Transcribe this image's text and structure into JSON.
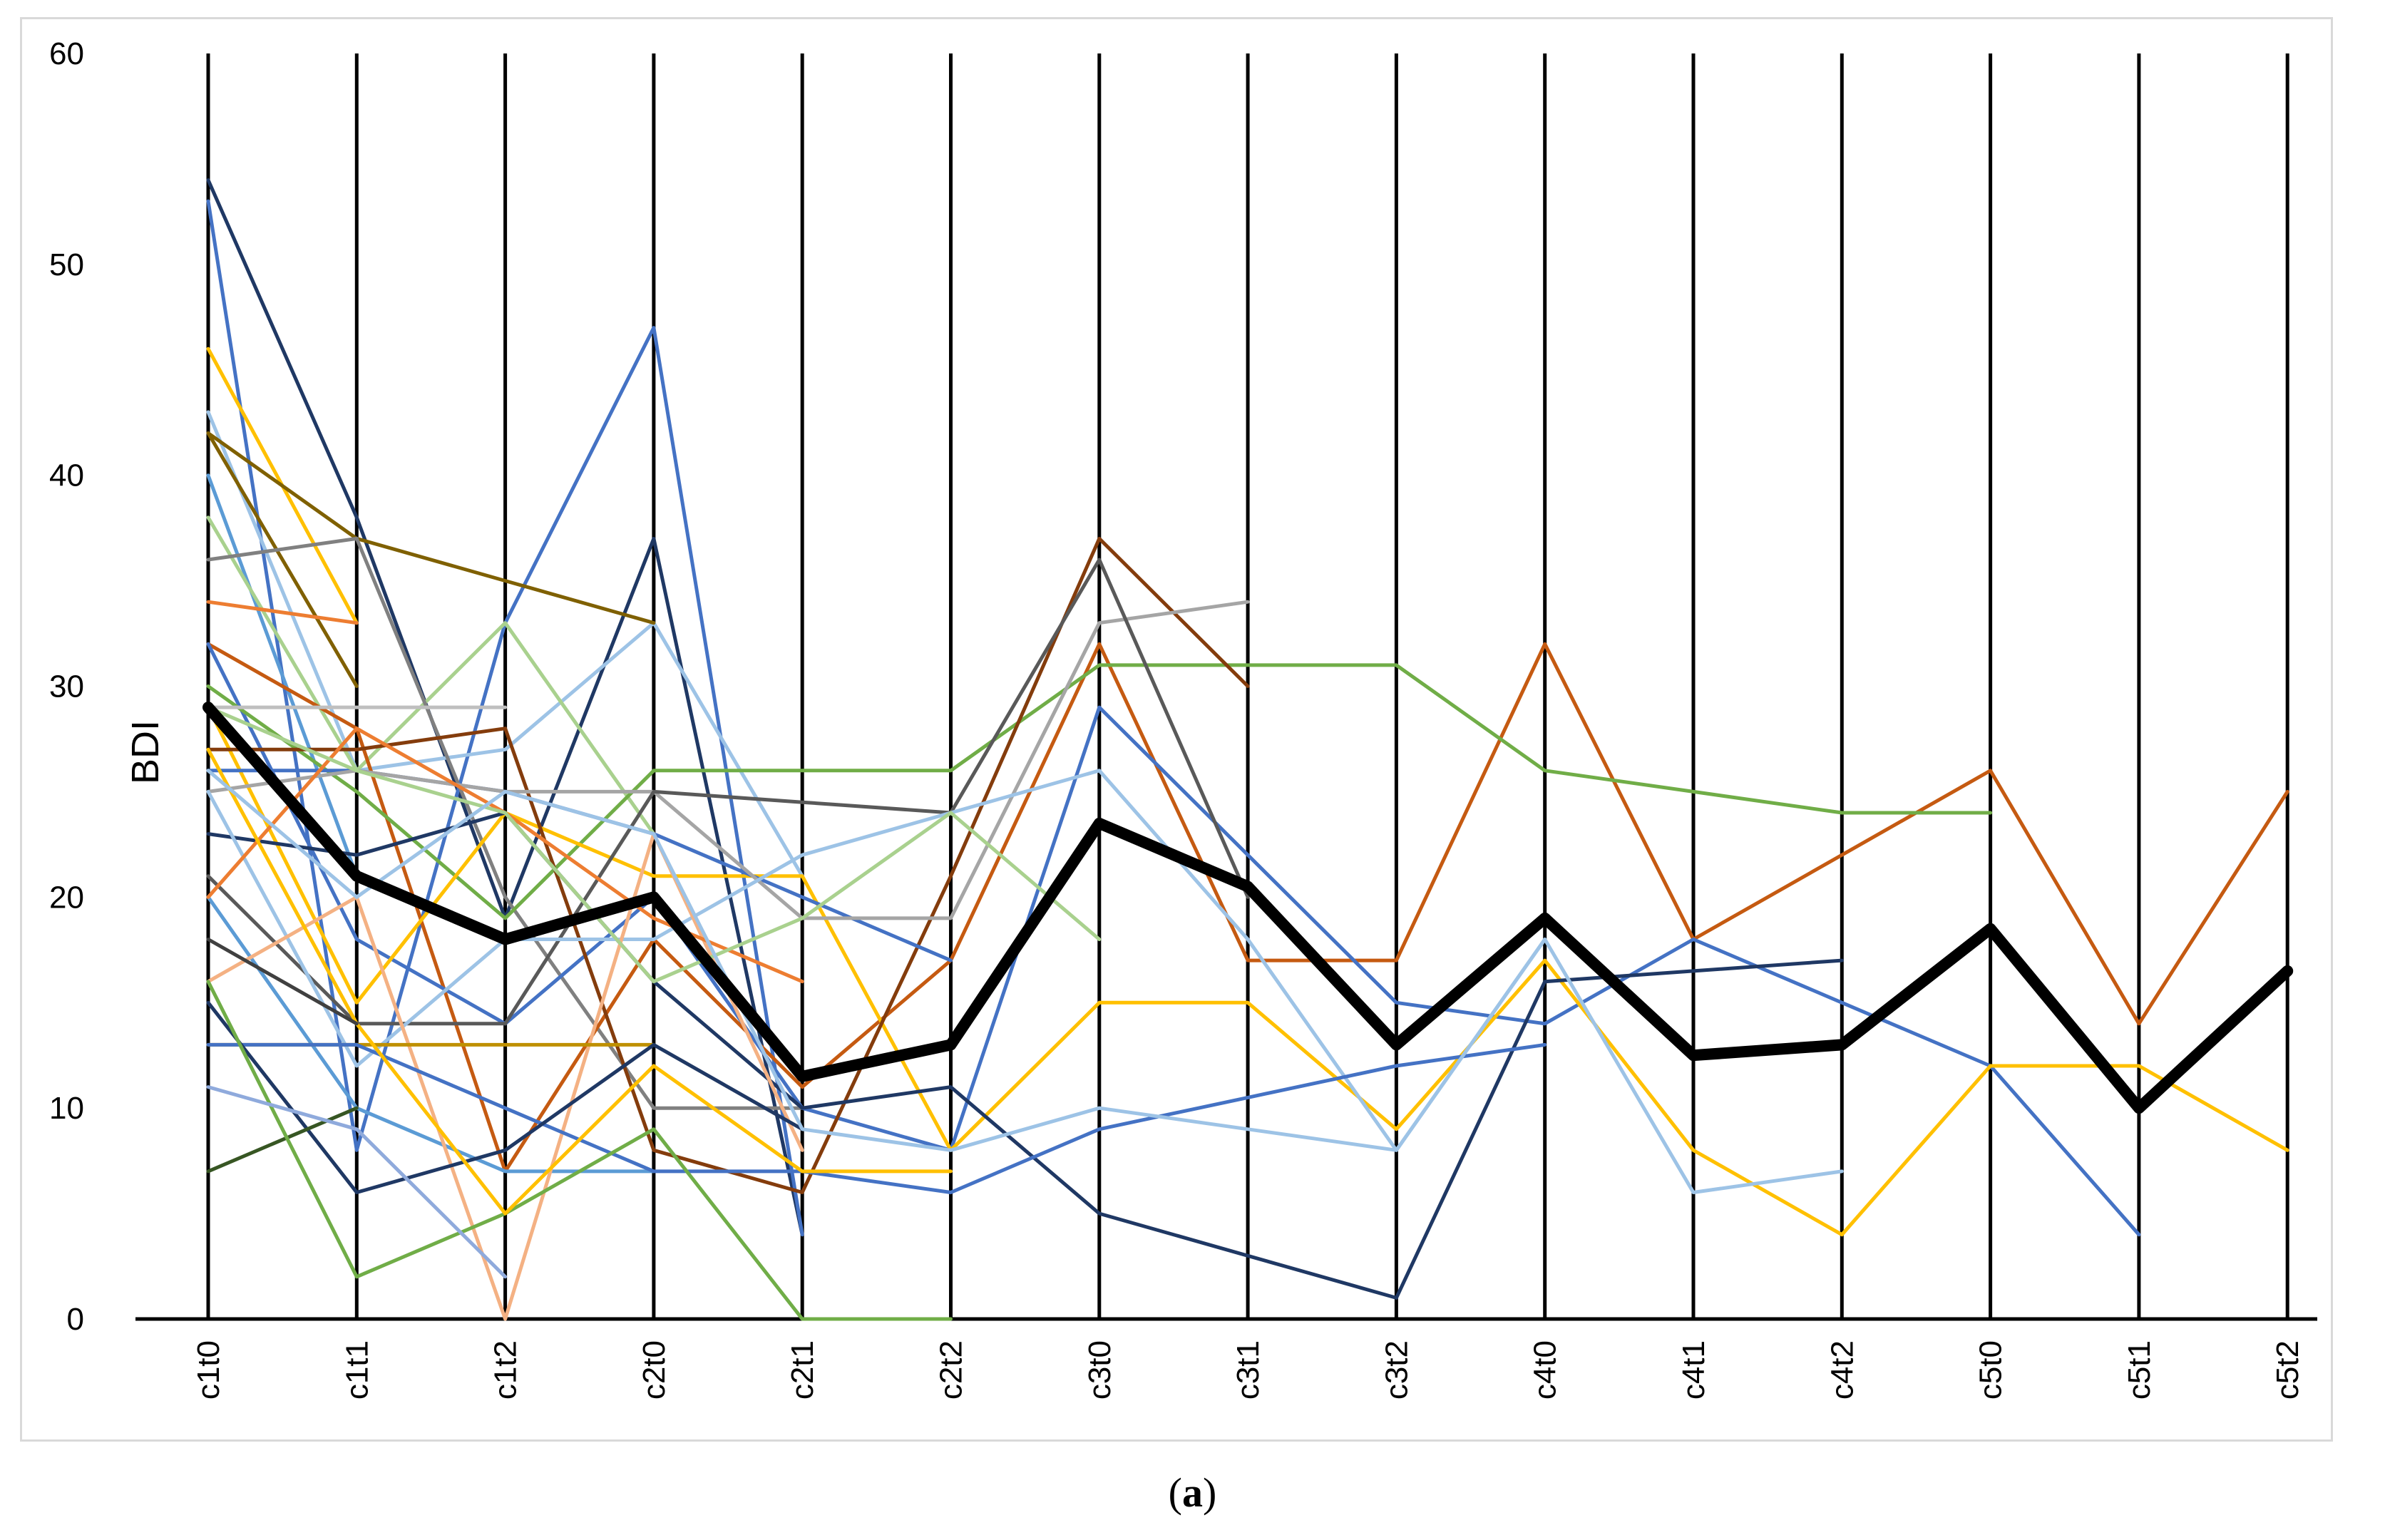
{
  "caption": {
    "open": "(",
    "letter": "a",
    "close": ")"
  },
  "chart_data": {
    "type": "line",
    "title": "",
    "xlabel": "",
    "ylabel": "BDI",
    "ylim": [
      0,
      60
    ],
    "yticks": [
      0,
      10,
      20,
      30,
      40,
      50,
      60
    ],
    "grid": "vertical lines at each category",
    "legend": "none",
    "categories": [
      "c1t0",
      "c1t1",
      "c1t2",
      "c2t0",
      "c2t1",
      "c2t2",
      "c3t0",
      "c3t1",
      "c3t2",
      "c4t0",
      "c4t1",
      "c4t2",
      "c5t0",
      "c5t1",
      "c5t2"
    ],
    "mean_series": {
      "name": "mean",
      "color": "#000000",
      "values": [
        29,
        21,
        18,
        20,
        11.5,
        13,
        23.5,
        20.5,
        13,
        19,
        12.5,
        13,
        18.5,
        10,
        16.5
      ]
    },
    "series": [
      {
        "color": "#1f3864",
        "values": [
          54,
          38,
          19,
          37,
          4,
          null,
          null,
          null,
          null,
          null,
          null,
          null,
          null,
          null,
          null
        ]
      },
      {
        "color": "#4472c4",
        "values": [
          53,
          8,
          33,
          47,
          4,
          null,
          null,
          null,
          null,
          null,
          null,
          null,
          null,
          null,
          null
        ]
      },
      {
        "color": "#ffc000",
        "values": [
          46,
          33,
          null,
          null,
          null,
          null,
          null,
          null,
          null,
          null,
          null,
          null,
          null,
          null,
          null
        ]
      },
      {
        "color": "#9dc3e6",
        "values": [
          43,
          26,
          27,
          33,
          21,
          null,
          null,
          null,
          null,
          null,
          null,
          null,
          null,
          null,
          null
        ]
      },
      {
        "color": "#7f6000",
        "values": [
          42,
          37,
          35,
          33,
          null,
          null,
          null,
          null,
          null,
          null,
          null,
          null,
          null,
          null,
          null
        ]
      },
      {
        "color": "#806000",
        "values": [
          42,
          30,
          null,
          null,
          null,
          null,
          null,
          null,
          null,
          null,
          null,
          null,
          null,
          null,
          null
        ]
      },
      {
        "color": "#5b9bd5",
        "values": [
          40,
          21,
          null,
          null,
          null,
          null,
          null,
          null,
          null,
          null,
          null,
          null,
          null,
          null,
          null
        ]
      },
      {
        "color": "#a9d18e",
        "values": [
          38,
          26,
          33,
          23,
          null,
          null,
          null,
          null,
          null,
          null,
          null,
          null,
          null,
          null,
          null
        ]
      },
      {
        "color": "#808080",
        "values": [
          36,
          37,
          20,
          10,
          10,
          null,
          null,
          null,
          null,
          null,
          null,
          null,
          null,
          null,
          null
        ]
      },
      {
        "color": "#ed7d31",
        "values": [
          34,
          33,
          null,
          null,
          null,
          null,
          null,
          null,
          null,
          null,
          null,
          null,
          null,
          null,
          null
        ]
      },
      {
        "color": "#c55a11",
        "values": [
          32,
          28,
          7,
          18,
          11,
          17,
          32,
          17,
          17,
          32,
          18,
          22,
          26,
          14,
          25
        ]
      },
      {
        "color": "#4472c4",
        "values": [
          32,
          18,
          14,
          20,
          10,
          8,
          29,
          22,
          15,
          14,
          18,
          15,
          12,
          4,
          null
        ]
      },
      {
        "color": "#70ad47",
        "values": [
          30,
          25,
          19,
          26,
          26,
          26,
          31,
          31,
          31,
          26,
          25,
          24,
          24,
          null,
          null
        ]
      },
      {
        "color": "#bfbfbf",
        "values": [
          29,
          29,
          29,
          null,
          null,
          null,
          null,
          null,
          null,
          null,
          null,
          null,
          null,
          null,
          null
        ]
      },
      {
        "color": "#ffc000",
        "values": [
          29,
          15,
          24,
          21,
          21,
          8,
          15,
          15,
          9,
          17,
          8,
          4,
          12,
          12,
          8
        ]
      },
      {
        "color": "#843c0c",
        "values": [
          27,
          27,
          28,
          8,
          6,
          21,
          37,
          30,
          null,
          null,
          null,
          null,
          null,
          null,
          null
        ]
      },
      {
        "color": "#4472c4",
        "values": [
          26,
          26,
          25,
          23,
          20,
          17,
          null,
          null,
          null,
          null,
          null,
          null,
          null,
          null,
          null
        ]
      },
      {
        "color": "#a5a5a5",
        "values": [
          25,
          26,
          25,
          25,
          19,
          19,
          33,
          34,
          null,
          null,
          null,
          null,
          null,
          null,
          null
        ]
      },
      {
        "color": "#595959",
        "values": [
          21,
          14,
          14,
          25,
          24.5,
          24,
          36,
          20,
          null,
          null,
          null,
          null,
          null,
          null,
          null
        ]
      },
      {
        "color": "#1f3864",
        "values": [
          23,
          22,
          24,
          16,
          10,
          11,
          5,
          3,
          1,
          16,
          16.5,
          17,
          null,
          null,
          null
        ]
      },
      {
        "color": "#9dc3e6",
        "values": [
          25,
          12,
          18,
          18,
          22,
          24,
          26,
          18,
          8,
          18,
          6,
          7,
          null,
          null,
          null
        ]
      },
      {
        "color": "#5b9bd5",
        "values": [
          20,
          10,
          7,
          7,
          null,
          null,
          null,
          null,
          null,
          null,
          null,
          null,
          null,
          null,
          null
        ]
      },
      {
        "color": "#f4b183",
        "values": [
          16,
          20,
          0,
          23,
          8,
          null,
          null,
          null,
          null,
          null,
          null,
          null,
          null,
          null,
          null
        ]
      },
      {
        "color": "#ed7d31",
        "values": [
          20,
          28,
          24,
          19,
          16,
          null,
          null,
          null,
          null,
          null,
          null,
          null,
          null,
          null,
          null
        ]
      },
      {
        "color": "#bf9000",
        "values": [
          13,
          13,
          13,
          13,
          null,
          null,
          null,
          null,
          null,
          null,
          null,
          null,
          null,
          null,
          null
        ]
      },
      {
        "color": "#4472c4",
        "values": [
          13,
          13,
          10,
          7,
          7,
          6,
          9,
          10.5,
          12,
          13,
          null,
          null,
          null,
          null,
          null
        ]
      },
      {
        "color": "#1f3864",
        "values": [
          15,
          6,
          8,
          13,
          9,
          null,
          null,
          null,
          null,
          null,
          null,
          null,
          null,
          null,
          null
        ]
      },
      {
        "color": "#375623",
        "values": [
          7,
          10,
          null,
          null,
          null,
          null,
          null,
          null,
          null,
          null,
          null,
          null,
          null,
          null,
          null
        ]
      },
      {
        "color": "#70ad47",
        "values": [
          16,
          2,
          5,
          9,
          0,
          0,
          null,
          null,
          null,
          null,
          null,
          null,
          null,
          null,
          null
        ]
      },
      {
        "color": "#8faadc",
        "values": [
          11,
          9,
          2,
          null,
          null,
          null,
          null,
          null,
          null,
          null,
          null,
          null,
          null,
          null,
          null
        ]
      },
      {
        "color": "#ffc000",
        "values": [
          27,
          14,
          5,
          12,
          7,
          7,
          null,
          null,
          null,
          null,
          null,
          null,
          null,
          null,
          null
        ]
      },
      {
        "color": "#a9d18e",
        "values": [
          29,
          26,
          24,
          16,
          19,
          24,
          18,
          null,
          null,
          null,
          null,
          null,
          null,
          null,
          null
        ]
      },
      {
        "color": "#9dc3e6",
        "values": [
          26,
          20,
          25,
          23,
          9,
          8,
          10,
          9,
          8,
          18,
          null,
          null,
          null,
          null,
          null
        ]
      },
      {
        "color": "#404040",
        "values": [
          18,
          14,
          null,
          null,
          null,
          null,
          null,
          null,
          null,
          null,
          null,
          null,
          null,
          null,
          null
        ]
      }
    ]
  }
}
